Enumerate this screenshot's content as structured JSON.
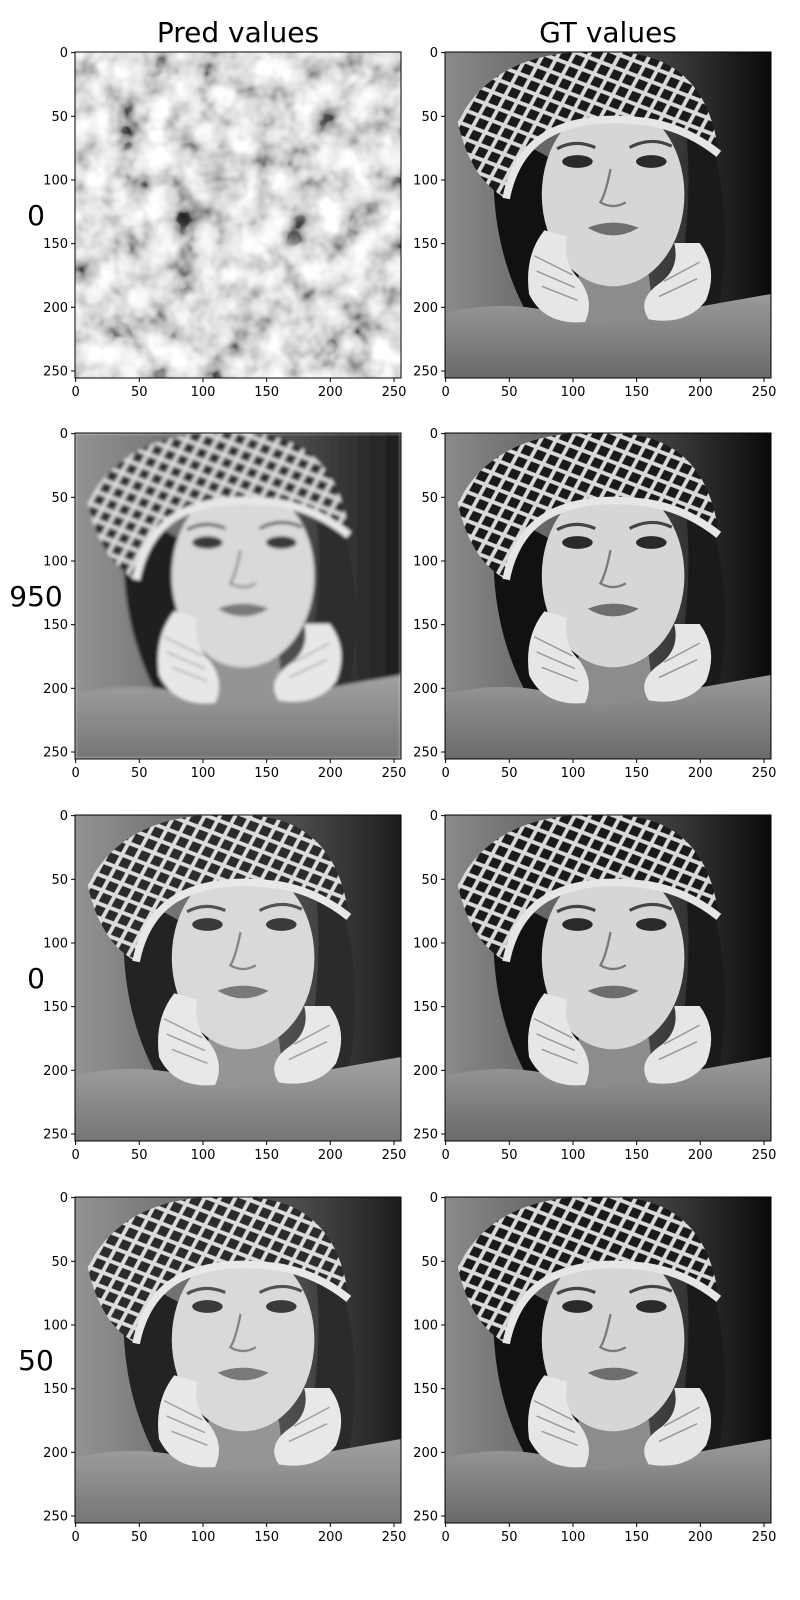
{
  "chart_data": [
    {
      "type": "heatmap",
      "title": "Pred values",
      "row_label": "0",
      "image": "noise",
      "xlim": [
        0,
        255
      ],
      "ylim": [
        255,
        0
      ],
      "xticks": [
        0,
        50,
        100,
        150,
        200,
        250
      ],
      "yticks": [
        0,
        50,
        100,
        150,
        200,
        250
      ]
    },
    {
      "type": "heatmap",
      "title": "GT values",
      "image": "portrait",
      "xlim": [
        0,
        255
      ],
      "ylim": [
        255,
        0
      ],
      "xticks": [
        0,
        50,
        100,
        150,
        200,
        250
      ],
      "yticks": [
        0,
        50,
        100,
        150,
        200,
        250
      ]
    },
    {
      "type": "heatmap",
      "row_label": "950",
      "image": "portrait-soft",
      "xlim": [
        0,
        255
      ],
      "ylim": [
        255,
        0
      ],
      "xticks": [
        0,
        50,
        100,
        150,
        200,
        250
      ],
      "yticks": [
        0,
        50,
        100,
        150,
        200,
        250
      ]
    },
    {
      "type": "heatmap",
      "image": "portrait",
      "xlim": [
        0,
        255
      ],
      "ylim": [
        255,
        0
      ],
      "xticks": [
        0,
        50,
        100,
        150,
        200,
        250
      ],
      "yticks": [
        0,
        50,
        100,
        150,
        200,
        250
      ]
    },
    {
      "type": "heatmap",
      "row_label": "0",
      "image": "portrait-bright",
      "xlim": [
        0,
        255
      ],
      "ylim": [
        255,
        0
      ],
      "xticks": [
        0,
        50,
        100,
        150,
        200,
        250
      ],
      "yticks": [
        0,
        50,
        100,
        150,
        200,
        250
      ]
    },
    {
      "type": "heatmap",
      "image": "portrait",
      "xlim": [
        0,
        255
      ],
      "ylim": [
        255,
        0
      ],
      "xticks": [
        0,
        50,
        100,
        150,
        200,
        250
      ],
      "yticks": [
        0,
        50,
        100,
        150,
        200,
        250
      ]
    },
    {
      "type": "heatmap",
      "row_label": "50",
      "image": "portrait-bright",
      "xlim": [
        0,
        255
      ],
      "ylim": [
        255,
        0
      ],
      "xticks": [
        0,
        50,
        100,
        150,
        200,
        250
      ],
      "yticks": [
        0,
        50,
        100,
        150,
        200,
        250
      ]
    },
    {
      "type": "heatmap",
      "image": "portrait",
      "xlim": [
        0,
        255
      ],
      "ylim": [
        255,
        0
      ],
      "xticks": [
        0,
        50,
        100,
        150,
        200,
        250
      ],
      "yticks": [
        0,
        50,
        100,
        150,
        200,
        250
      ]
    }
  ]
}
